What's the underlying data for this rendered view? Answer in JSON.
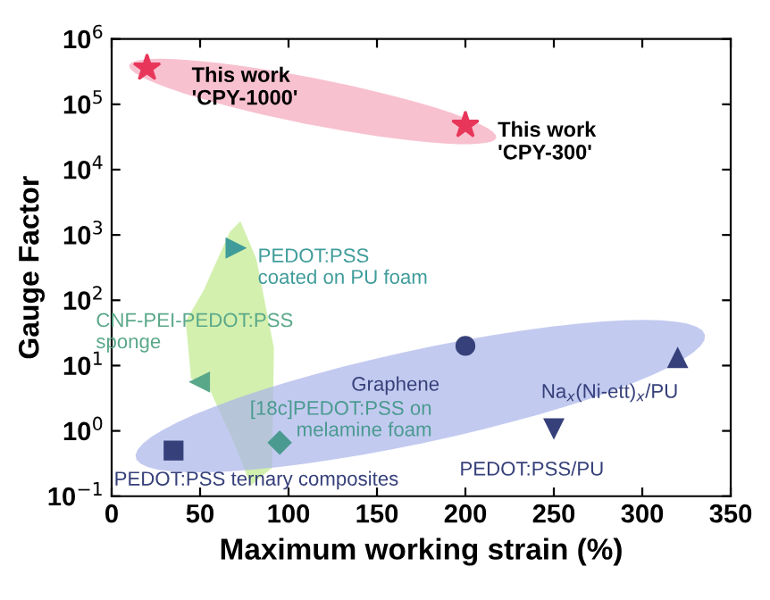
{
  "chart_data": {
    "type": "scatter",
    "xlabel": "Maximum working strain (%)",
    "ylabel": "Gauge Factor",
    "log": "y",
    "xlim": [
      0,
      350
    ],
    "xticks": [
      0,
      50,
      100,
      150,
      200,
      250,
      300,
      350
    ],
    "ylim": [
      0.1,
      1000000
    ],
    "yticks": [
      {
        "value": 0.1,
        "label": "10$^{−1}$"
      },
      {
        "value": 1,
        "label": "10$^{0}$"
      },
      {
        "value": 10,
        "label": "10$^{1}$"
      },
      {
        "value": 100,
        "label": "10$^{2}$"
      },
      {
        "value": 1000,
        "label": "10$^{3}$"
      },
      {
        "value": 10000,
        "label": "10$^{4}$"
      },
      {
        "value": 100000,
        "label": "10$^{5}$"
      },
      {
        "value": 1000000,
        "label": "10$^{6}$"
      }
    ],
    "grid": false,
    "legend": false,
    "series": [
      {
        "name": "This work\n'CPY-1000'",
        "color": "#e8365a",
        "marker": "star",
        "x": [
          20
        ],
        "values": [
          360000
        ]
      },
      {
        "name": "This work\n'CPY-300'",
        "color": "#e8365a",
        "marker": "star",
        "x": [
          200
        ],
        "values": [
          48000
        ]
      },
      {
        "name": "PEDOT:PSS\ncoated on PU foam",
        "color": "#3f9c9a",
        "marker": "triangle-right",
        "x": [
          70
        ],
        "values": [
          630
        ]
      },
      {
        "name": "CNF-PEI-PEDOT:PSS\nsponge",
        "color": "#5aa88a",
        "marker": "triangle-left",
        "x": [
          50
        ],
        "values": [
          5.6
        ]
      },
      {
        "name": "Graphene",
        "color": "#36407a",
        "marker": "circle",
        "x": [
          200
        ],
        "values": [
          20
        ]
      },
      {
        "name": "Na$_{x}$(Ni-ett)$_{x}$/PU",
        "color": "#36407a",
        "marker": "triangle",
        "x": [
          320
        ],
        "values": [
          13
        ]
      },
      {
        "name": "PEDOT:PSS/PU",
        "color": "#36407a",
        "marker": "triangle-down",
        "x": [
          250
        ],
        "values": [
          1.1
        ]
      },
      {
        "name": "[18c]PEDOT:PSS on\nmelamine foam",
        "color": "#4a9a90",
        "marker": "diamond",
        "x": [
          95
        ],
        "values": [
          0.66
        ]
      },
      {
        "name": "PEDOT:PSS ternary composites",
        "color": "#36407a",
        "marker": "square",
        "x": [
          35
        ],
        "values": [
          0.5
        ]
      }
    ]
  }
}
